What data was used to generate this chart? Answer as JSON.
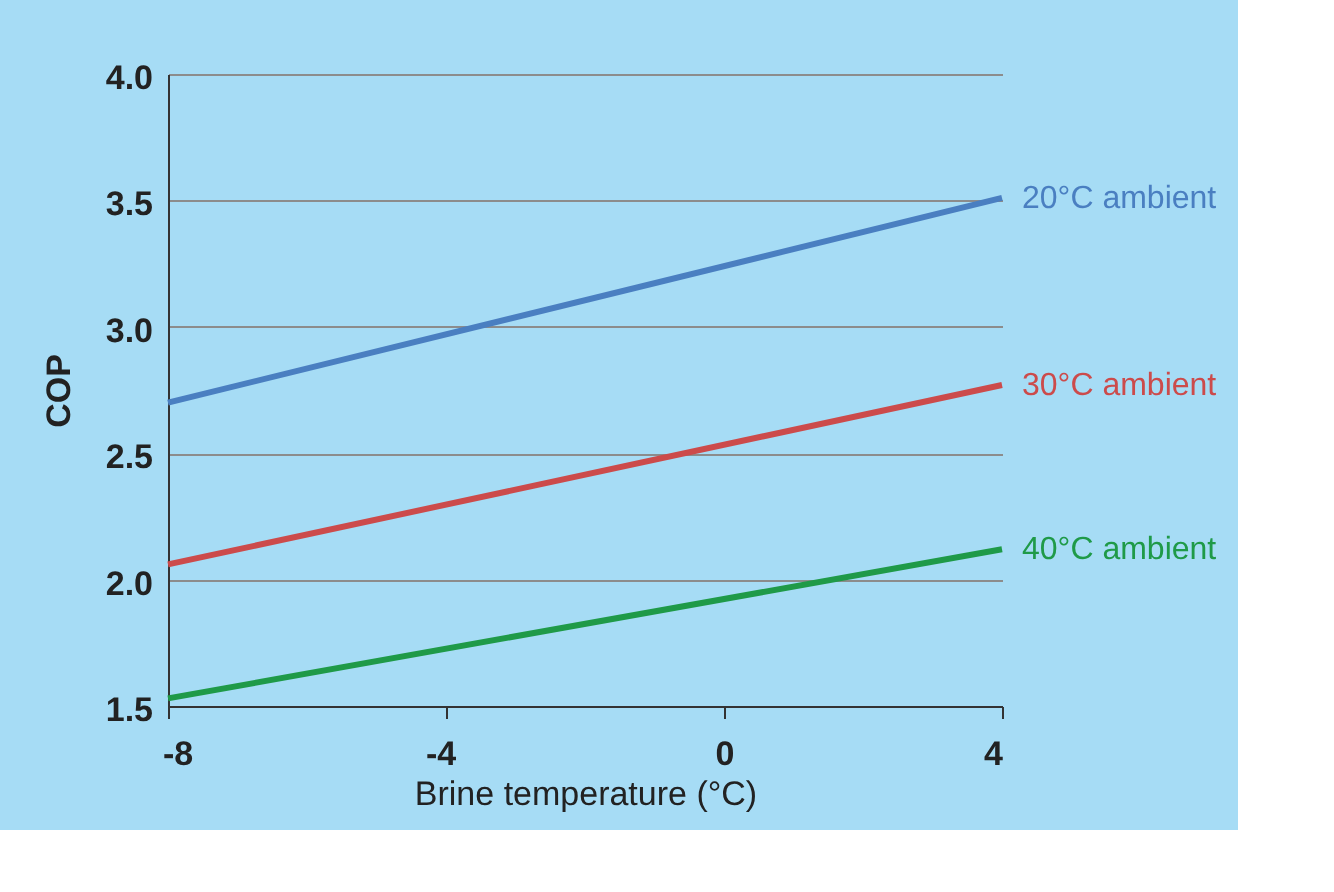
{
  "chart_data": {
    "type": "line",
    "xlabel": "Brine temperature (°C)",
    "ylabel": "COP",
    "x": [
      -8,
      4
    ],
    "series": [
      {
        "name": "20°C ambient",
        "color": "#4a7fc1",
        "values": [
          2.7,
          3.51
        ]
      },
      {
        "name": "30°C ambient",
        "color": "#cc4b4b",
        "values": [
          2.06,
          2.77
        ]
      },
      {
        "name": "40°C ambient",
        "color": "#1f9a48",
        "values": [
          1.53,
          2.12
        ]
      }
    ],
    "xlim": [
      -8,
      4
    ],
    "xticks": [
      -8,
      -4,
      0,
      4
    ],
    "ylim": [
      1.5,
      4.0
    ],
    "yticks": [
      {
        "value": 1.5,
        "label": "1.5"
      },
      {
        "value": 2,
        "label": "2.0"
      },
      {
        "value": 2.5,
        "label": "2.5"
      },
      {
        "value": 3,
        "label": "3.0"
      },
      {
        "value": 3.5,
        "label": "3.5"
      },
      {
        "value": 4,
        "label": "4.0"
      }
    ],
    "grid": "y",
    "legend": false,
    "marker": "none",
    "line_style": "solid"
  }
}
